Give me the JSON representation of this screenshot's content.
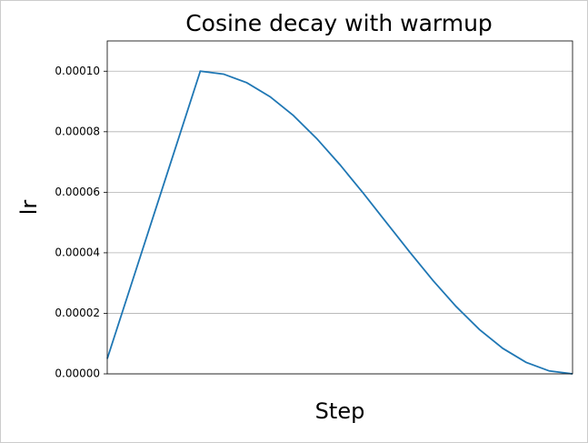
{
  "chart_data": {
    "type": "line",
    "title": "Cosine decay with warmup",
    "x_label": "Step",
    "y_label": "lr",
    "x": [
      0,
      5,
      10,
      15,
      20,
      25,
      30,
      35,
      40,
      45,
      50,
      55,
      60,
      65,
      70,
      75,
      80,
      85,
      90,
      95,
      100
    ],
    "series": [
      {
        "color": "#1f77b4",
        "values": [
          5e-06,
          2.875e-05,
          5.25e-05,
          7.625e-05,
          0.0001,
          9.904e-05,
          9.619e-05,
          9.157e-05,
          8.536e-05,
          7.778e-05,
          6.913e-05,
          5.975e-05,
          5e-05,
          4.025e-05,
          3.087e-05,
          2.222e-05,
          1.464e-05,
          8.43e-06,
          3.81e-06,
          9.6e-07,
          0
        ]
      }
    ],
    "xlim": [
      0,
      100
    ],
    "ylim": [
      0,
      0.00011
    ],
    "yticks": [
      {
        "value": 0,
        "label": "0.00000"
      },
      {
        "value": 2e-05,
        "label": "0.00002"
      },
      {
        "value": 4e-05,
        "label": "0.00004"
      },
      {
        "value": 6e-05,
        "label": "0.00006"
      },
      {
        "value": 8e-05,
        "label": "0.00008"
      },
      {
        "value": 0.0001,
        "label": "0.00010"
      }
    ],
    "grid": "y"
  }
}
